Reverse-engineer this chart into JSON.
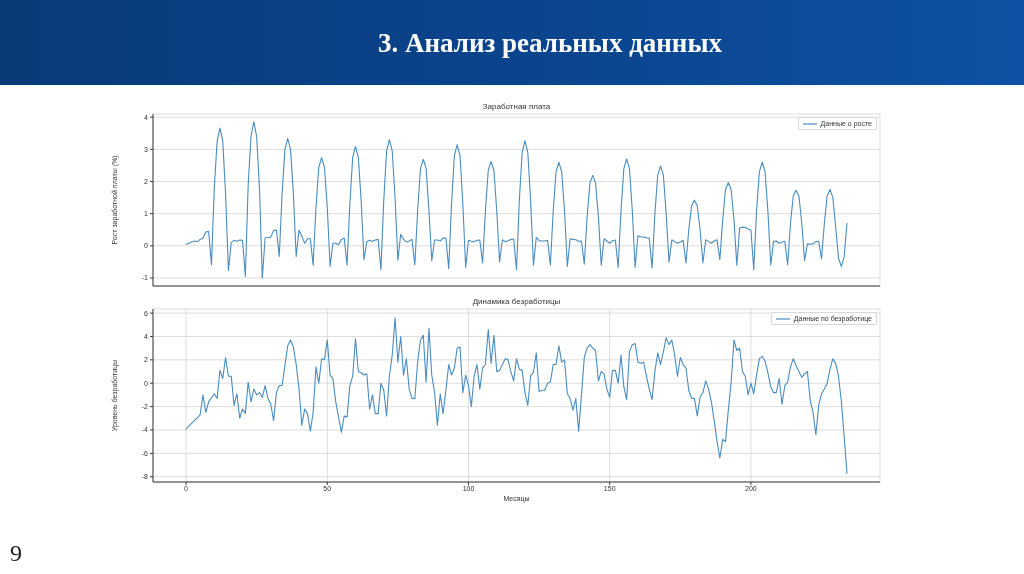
{
  "chart_data": [
    {
      "type": "line",
      "title": "Заработная плата",
      "ylabel": "Рост заработной платы (%)",
      "annotations": [
        "3. Анализ реальных данных"
      ],
      "x": [
        0,
        1,
        2,
        3,
        4,
        5,
        6,
        7,
        8,
        9,
        10,
        11,
        12,
        13,
        14,
        15,
        16,
        17,
        18,
        19,
        20,
        21,
        22,
        23,
        24,
        25,
        26,
        27,
        28,
        29,
        30,
        31,
        32,
        33,
        34,
        35,
        36,
        37,
        38,
        39,
        40,
        41,
        42,
        43,
        44,
        45,
        46,
        47,
        48,
        49,
        50,
        51,
        52,
        53,
        54,
        55,
        56,
        57,
        58,
        59,
        60,
        61,
        62,
        63,
        64,
        65,
        66,
        67,
        68,
        69,
        70,
        71,
        72,
        73,
        74,
        75,
        76,
        77,
        78,
        79,
        80,
        81,
        82,
        83,
        84,
        85,
        86,
        87,
        88,
        89,
        90,
        91,
        92,
        93,
        94,
        95,
        96,
        97,
        98,
        99,
        100,
        101,
        102,
        103,
        104,
        105,
        106,
        107,
        108,
        109,
        110,
        111,
        112,
        113,
        114,
        115,
        116,
        117,
        118,
        119,
        120,
        121,
        122,
        123,
        124,
        125,
        126,
        127,
        128,
        129,
        130,
        131,
        132,
        133,
        134,
        135,
        136,
        137,
        138,
        139,
        140,
        141,
        142,
        143,
        144,
        145,
        146,
        147,
        148,
        149,
        150,
        151,
        152,
        153,
        154,
        155,
        156,
        157,
        158,
        159,
        160,
        161,
        162,
        163,
        164,
        165,
        166,
        167,
        168,
        169,
        170,
        171,
        172,
        173,
        174,
        175,
        176,
        177,
        178,
        179,
        180,
        181,
        182,
        183,
        184,
        185,
        186,
        187,
        188,
        189,
        190,
        191,
        192,
        193,
        194,
        195,
        196,
        197,
        198,
        199,
        200,
        201,
        202,
        203,
        204,
        205,
        206,
        207,
        208,
        209,
        210,
        211,
        212,
        213,
        214,
        215,
        216,
        217,
        218,
        219,
        220,
        221,
        222,
        223,
        224,
        225,
        226,
        227,
        228,
        229,
        230,
        231,
        232,
        233,
        234
      ],
      "series": [
        {
          "name": "Данные о росте",
          "color": "#4a8cc0",
          "values": [
            0.05,
            0.08,
            0.12,
            0.15,
            0.13,
            0.2,
            0.24,
            0.43,
            0.45,
            -0.59,
            1.8,
            3.25,
            3.66,
            3.25,
            1.6,
            -0.77,
            0.1,
            0.17,
            0.14,
            0.18,
            0.17,
            -0.95,
            1.9,
            3.4,
            3.86,
            3.4,
            1.8,
            -1.0,
            0.25,
            0.26,
            0.27,
            0.48,
            0.49,
            -0.33,
            1.6,
            3.0,
            3.34,
            3.0,
            1.6,
            -0.33,
            0.49,
            0.3,
            0.08,
            0.22,
            0.22,
            -0.6,
            1.2,
            2.45,
            2.74,
            2.45,
            1.2,
            -0.64,
            0.08,
            0.08,
            0.03,
            0.2,
            0.24,
            -0.6,
            1.3,
            2.75,
            3.09,
            2.75,
            1.4,
            -0.43,
            0.13,
            0.17,
            0.14,
            0.18,
            0.2,
            -0.74,
            1.4,
            2.95,
            3.3,
            2.95,
            1.5,
            -0.45,
            0.36,
            0.2,
            0.12,
            0.15,
            0.2,
            -0.59,
            1.1,
            2.4,
            2.69,
            2.4,
            1.1,
            -0.46,
            0.18,
            0.18,
            0.15,
            0.24,
            0.24,
            -0.71,
            1.3,
            2.8,
            3.15,
            2.8,
            1.3,
            -0.67,
            0.17,
            0.14,
            0.13,
            0.17,
            0.18,
            -0.53,
            1.1,
            2.35,
            2.62,
            2.35,
            1.1,
            -0.5,
            0.19,
            0.13,
            0.16,
            0.2,
            0.21,
            -0.74,
            1.4,
            2.9,
            3.27,
            2.9,
            1.4,
            -0.6,
            0.26,
            0.16,
            0.15,
            0.15,
            0.17,
            -0.6,
            1.1,
            2.3,
            2.6,
            2.3,
            1.1,
            -0.64,
            0.22,
            0.2,
            0.19,
            0.14,
            0.15,
            -0.57,
            0.9,
            1.95,
            2.19,
            1.95,
            0.9,
            -0.6,
            0.22,
            0.15,
            0.08,
            0.16,
            0.18,
            -0.67,
            1.1,
            2.4,
            2.7,
            2.4,
            1.1,
            -0.67,
            0.31,
            0.28,
            0.27,
            0.25,
            0.24,
            -0.69,
            1.0,
            2.2,
            2.48,
            2.2,
            1.0,
            -0.5,
            0.19,
            0.13,
            0.08,
            0.12,
            0.17,
            -0.53,
            0.5,
            1.25,
            1.42,
            1.25,
            0.5,
            -0.53,
            0.19,
            0.13,
            0.08,
            0.15,
            0.19,
            -0.43,
            0.8,
            1.75,
            1.97,
            1.75,
            0.8,
            -0.6,
            0.55,
            0.58,
            0.57,
            0.52,
            0.49,
            -0.74,
            1.1,
            2.3,
            2.6,
            2.3,
            1.1,
            -0.6,
            0.14,
            0.15,
            0.08,
            0.12,
            0.14,
            -0.59,
            0.7,
            1.55,
            1.73,
            1.55,
            0.7,
            -0.46,
            0.06,
            0.05,
            0.06,
            0.13,
            0.14,
            -0.4,
            0.7,
            1.55,
            1.75,
            1.5,
            0.6,
            -0.38,
            -0.64,
            -0.35,
            0.7
          ]
        }
      ],
      "xlim": [
        -11.7,
        245.7
      ],
      "xticks": [
        0,
        50,
        100,
        150,
        200
      ],
      "ylim": [
        -1.25,
        4.1
      ],
      "yticks": [
        -1,
        0,
        1,
        2,
        3,
        4
      ],
      "tick_labels": "y",
      "grid": true,
      "legend": "top right"
    },
    {
      "type": "line",
      "title": "Динамика безработицы",
      "xlabel": "Месяцы",
      "ylabel": "Уровень безработицы",
      "annotations": [
        "9"
      ],
      "x": [
        0,
        5,
        6,
        7,
        8,
        10,
        11,
        12,
        13,
        14,
        15,
        16,
        17,
        18,
        19,
        20,
        21,
        22,
        23,
        24,
        25,
        26,
        27,
        28,
        29,
        30,
        31,
        32,
        33,
        34,
        35,
        36,
        37,
        38,
        39,
        40,
        41,
        42,
        43,
        44,
        45,
        46,
        47,
        48,
        49,
        50,
        51,
        52,
        53,
        54,
        55,
        56,
        57,
        58,
        59,
        60,
        61,
        62,
        63,
        64,
        65,
        66,
        67,
        68,
        69,
        70,
        71,
        72,
        73,
        74,
        75,
        76,
        77,
        78,
        79,
        80,
        81,
        82,
        83,
        84,
        85,
        86,
        87,
        88,
        89,
        90,
        91,
        92,
        93,
        94,
        95,
        96,
        97,
        98,
        99,
        100,
        101,
        102,
        103,
        104,
        105,
        106,
        107,
        108,
        109,
        110,
        111,
        112,
        113,
        114,
        115,
        116,
        117,
        118,
        119,
        120,
        121,
        122,
        123,
        124,
        125,
        126,
        127,
        128,
        129,
        130,
        131,
        132,
        133,
        134,
        135,
        136,
        137,
        138,
        139,
        140,
        141,
        142,
        143,
        144,
        145,
        146,
        147,
        148,
        149,
        150,
        151,
        152,
        153,
        154,
        155,
        156,
        157,
        158,
        159,
        160,
        161,
        162,
        163,
        164,
        165,
        166,
        167,
        168,
        169,
        170,
        171,
        172,
        173,
        174,
        175,
        176,
        177,
        178,
        179,
        180,
        181,
        182,
        183,
        184,
        185,
        186,
        187,
        188,
        189,
        190,
        191,
        192,
        193,
        194,
        195,
        196,
        197,
        198,
        199,
        200,
        201,
        202,
        203,
        204,
        205,
        206,
        207,
        208,
        209,
        210,
        211,
        212,
        213,
        214,
        215,
        216,
        217,
        218,
        219,
        220,
        221,
        222,
        223,
        224,
        225,
        226,
        227,
        228,
        229,
        230,
        231,
        232,
        233,
        234
      ],
      "series": [
        {
          "name": "Данные по безработице",
          "color": "#4a8cc0",
          "values": [
            -3.9,
            -2.7,
            -1.0,
            -2.5,
            -1.6,
            -0.9,
            -1.3,
            1.1,
            0.4,
            2.2,
            0.6,
            0.6,
            -1.9,
            -0.9,
            -3.0,
            -2.2,
            -2.6,
            0.1,
            -1.6,
            -0.5,
            -1.0,
            -0.8,
            -1.2,
            -0.2,
            -1.3,
            -1.8,
            -3.2,
            -0.8,
            -0.2,
            -0.2,
            1.5,
            3.2,
            3.7,
            3.1,
            1.6,
            -0.5,
            -3.6,
            -2.2,
            -2.6,
            -4.1,
            -2.5,
            1.4,
            0,
            2.1,
            2.0,
            3.7,
            0.7,
            0.4,
            -1.6,
            -2.9,
            -4.2,
            -2.8,
            -2.9,
            -0.2,
            0.6,
            3.8,
            1.0,
            0.9,
            0.7,
            0.8,
            -2.2,
            -1.0,
            -2.6,
            -2.6,
            0,
            -0.6,
            -2.8,
            0.6,
            2.4,
            5.6,
            1.8,
            4.0,
            0.7,
            2.1,
            -0.5,
            -1.3,
            -1.3,
            1.8,
            3.7,
            4.1,
            0.1,
            4.7,
            0.7,
            -0.8,
            -3.6,
            -0.9,
            -2.6,
            -0.6,
            1.6,
            0.7,
            1.3,
            3.0,
            3.1,
            -0.8,
            0.7,
            -0.2,
            -2.0,
            0.6,
            1.6,
            -0.5,
            1.3,
            1.6,
            4.6,
            1.7,
            4.1,
            1.0,
            1.1,
            1.6,
            2.1,
            2.0,
            1.0,
            0.2,
            2.1,
            1.2,
            1.1,
            -0.8,
            -1.9,
            0.6,
            0.9,
            2.6,
            -0.7,
            -0.6,
            -0.6,
            0,
            0.1,
            1.6,
            1.6,
            3.2,
            1.8,
            2.0,
            -0.9,
            -1.3,
            -2.3,
            -1.3,
            -4.1,
            -1.0,
            2.2,
            3.0,
            3.3,
            3.0,
            2.8,
            0.2,
            1.0,
            0.8,
            -0.5,
            -1.2,
            1.1,
            1.1,
            0,
            2.4,
            -0.3,
            -1.4,
            2.7,
            3.3,
            3.4,
            1.8,
            1.7,
            1.8,
            0.6,
            -0.5,
            -1.4,
            1.0,
            2.6,
            1.6,
            2.7,
            3.9,
            3.3,
            3.7,
            2.4,
            0.6,
            2.2,
            1.6,
            1.3,
            -0.6,
            -1.3,
            -1.3,
            -2.8,
            -1.2,
            -0.8,
            0.2,
            -0.5,
            -1.6,
            -3.2,
            -5.0,
            -6.4,
            -4.8,
            -5.0,
            -2.3,
            0.1,
            3.7,
            2.8,
            3.0,
            1.0,
            0.6,
            -1.0,
            0,
            -0.9,
            0.7,
            2.1,
            2.3,
            1.9,
            0.9,
            -0.3,
            -0.8,
            -0.8,
            0.4,
            -1.8,
            -0.2,
            0.1,
            1.4,
            2.1,
            1.5,
            1.0,
            0.5,
            0.8,
            1.0,
            -1.5,
            -2.5,
            -4.4,
            -1.9,
            -0.9,
            -0.5,
            0,
            1.2,
            2.1,
            1.7,
            0.6,
            -1.5,
            -4.5,
            -7.7
          ]
        }
      ],
      "xlim": [
        -11.7,
        245.7
      ],
      "xticks": [
        0,
        50,
        100,
        150,
        200
      ],
      "ylim": [
        -8.45,
        6.35
      ],
      "yticks": [
        -8,
        -6,
        -4,
        -2,
        0,
        2,
        4,
        6
      ],
      "grid": true,
      "legend": "top right"
    }
  ]
}
